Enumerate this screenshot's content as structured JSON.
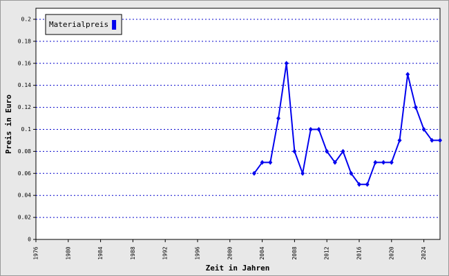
{
  "chart_data": {
    "type": "line",
    "x_label": "Zeit in Jahren",
    "y_label": "Preis in Euro",
    "x": [
      2003,
      2004,
      2005,
      2006,
      2007,
      2008,
      2009,
      2010,
      2011,
      2012,
      2013,
      2014,
      2015,
      2016,
      2017,
      2018,
      2019,
      2020,
      2021,
      2022,
      2023,
      2024,
      2025,
      2026
    ],
    "series": [
      {
        "name": "Materialpreis",
        "color": "#0000ee",
        "values": [
          0.06,
          0.07,
          0.07,
          0.11,
          0.16,
          0.08,
          0.06,
          0.1,
          0.1,
          0.08,
          0.07,
          0.08,
          0.06,
          0.05,
          0.05,
          0.07,
          0.07,
          0.07,
          0.09,
          0.15,
          0.12,
          0.1,
          0.09,
          0.09
        ]
      }
    ],
    "xlim": [
      1976,
      2026
    ],
    "ylim": [
      0,
      0.21
    ],
    "xticks": [
      1976,
      1980,
      1984,
      1988,
      1992,
      1996,
      2000,
      2004,
      2008,
      2012,
      2016,
      2020,
      2024
    ],
    "yticks": [
      0,
      0.02,
      0.04,
      0.06,
      0.08,
      0.1,
      0.12,
      0.14,
      0.16,
      0.18,
      0.2
    ],
    "grid": true,
    "legend": "top-left"
  }
}
